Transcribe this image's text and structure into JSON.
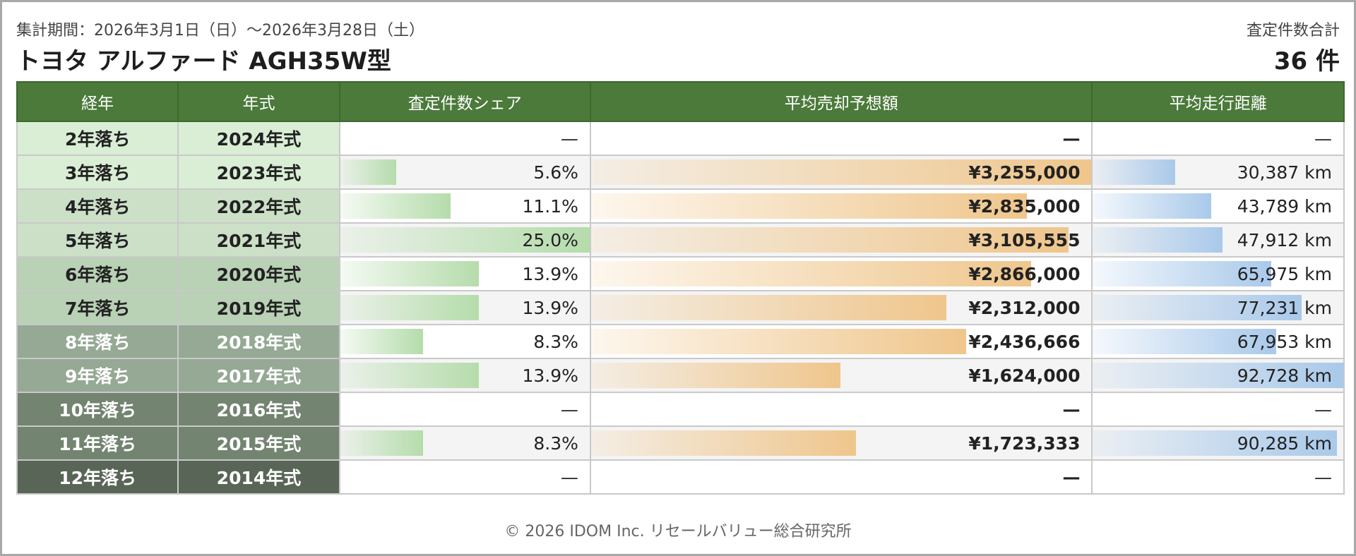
{
  "header": {
    "period": "集計期間：2026年3月1日（日）〜2026年3月28日（土）",
    "title": "トヨタ アルファード AGH35W型",
    "total_label": "査定件数合計",
    "total_value": "36 件"
  },
  "columns": [
    "経年",
    "年式",
    "査定件数シェア",
    "平均売却予想額",
    "平均走行距離"
  ],
  "rows": [
    {
      "age": "2年落ち",
      "year": "2024年式",
      "share": "—",
      "share_frac": 0,
      "price": "—",
      "price_frac": 0,
      "dist": "—",
      "dist_frac": 0,
      "label_bg": "#d9eed5",
      "label_fg": "#222222"
    },
    {
      "age": "3年落ち",
      "year": "2023年式",
      "share": "5.6%",
      "share_frac": 0.224,
      "price": "¥3,255,000",
      "price_frac": 1.0,
      "dist": "30,387 km",
      "dist_frac": 0.328,
      "label_bg": "#d9eed5",
      "label_fg": "#222222"
    },
    {
      "age": "4年落ち",
      "year": "2022年式",
      "share": "11.1%",
      "share_frac": 0.444,
      "price": "¥2,835,000",
      "price_frac": 0.871,
      "dist": "43,789 km",
      "dist_frac": 0.472,
      "label_bg": "#cce0c8",
      "label_fg": "#222222"
    },
    {
      "age": "5年落ち",
      "year": "2021年式",
      "share": "25.0%",
      "share_frac": 1.0,
      "price": "¥3,105,555",
      "price_frac": 0.954,
      "dist": "47,912 km",
      "dist_frac": 0.517,
      "label_bg": "#cce0c8",
      "label_fg": "#222222"
    },
    {
      "age": "6年落ち",
      "year": "2020年式",
      "share": "13.9%",
      "share_frac": 0.556,
      "price": "¥2,866,000",
      "price_frac": 0.88,
      "dist": "65,975 km",
      "dist_frac": 0.712,
      "label_bg": "#b9d1b5",
      "label_fg": "#222222"
    },
    {
      "age": "7年落ち",
      "year": "2019年式",
      "share": "13.9%",
      "share_frac": 0.556,
      "price": "¥2,312,000",
      "price_frac": 0.71,
      "dist": "77,231 km",
      "dist_frac": 0.833,
      "label_bg": "#b9d1b5",
      "label_fg": "#222222"
    },
    {
      "age": "8年落ち",
      "year": "2018年式",
      "share": "8.3%",
      "share_frac": 0.333,
      "price": "¥2,436,666",
      "price_frac": 0.749,
      "dist": "67,953 km",
      "dist_frac": 0.733,
      "label_bg": "#95a994",
      "label_fg": "#ffffff"
    },
    {
      "age": "9年落ち",
      "year": "2017年式",
      "share": "13.9%",
      "share_frac": 0.556,
      "price": "¥1,624,000",
      "price_frac": 0.499,
      "dist": "92,728 km",
      "dist_frac": 1.0,
      "label_bg": "#95a994",
      "label_fg": "#ffffff"
    },
    {
      "age": "10年落ち",
      "year": "2016年式",
      "share": "—",
      "share_frac": 0,
      "price": "—",
      "price_frac": 0,
      "dist": "—",
      "dist_frac": 0,
      "label_bg": "#738471",
      "label_fg": "#ffffff"
    },
    {
      "age": "11年落ち",
      "year": "2015年式",
      "share": "8.3%",
      "share_frac": 0.333,
      "price": "¥1,723,333",
      "price_frac": 0.529,
      "dist": "90,285 km",
      "dist_frac": 0.974,
      "label_bg": "#738471",
      "label_fg": "#ffffff"
    },
    {
      "age": "12年落ち",
      "year": "2014年式",
      "share": "—",
      "share_frac": 0,
      "price": "—",
      "price_frac": 0,
      "dist": "—",
      "dist_frac": 0,
      "label_bg": "#596657",
      "label_fg": "#ffffff"
    }
  ],
  "footer": "© 2026 IDOM Inc. リセールバリュー総合研究所"
}
